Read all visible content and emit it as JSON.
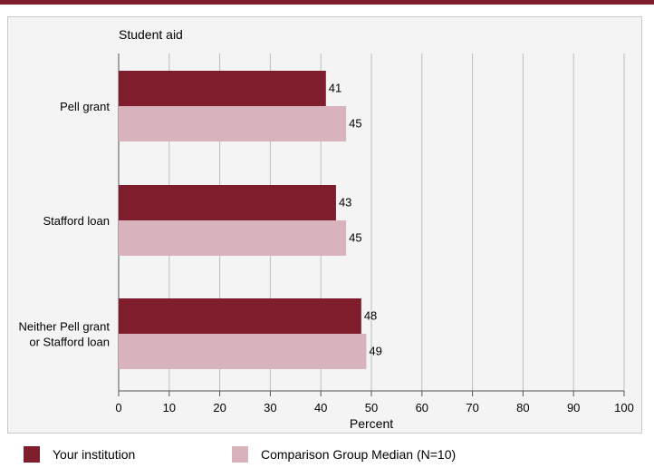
{
  "chart_data": {
    "type": "bar",
    "orientation": "horizontal",
    "title": "Student aid",
    "xlabel": "Percent",
    "xlim": [
      0,
      100
    ],
    "xticks": [
      0,
      10,
      20,
      30,
      40,
      50,
      60,
      70,
      80,
      90,
      100
    ],
    "grid": true,
    "legend_position": "bottom",
    "categories": [
      "Pell grant",
      "Stafford loan",
      "Neither Pell grant\nor Stafford loan"
    ],
    "series": [
      {
        "name": "Your institution",
        "values": [
          41,
          43,
          48
        ],
        "color": "#7f1d2d"
      },
      {
        "name": "Comparison Group Median (N=10)",
        "values": [
          45,
          45,
          49
        ],
        "color": "#d9b3bb"
      }
    ]
  }
}
